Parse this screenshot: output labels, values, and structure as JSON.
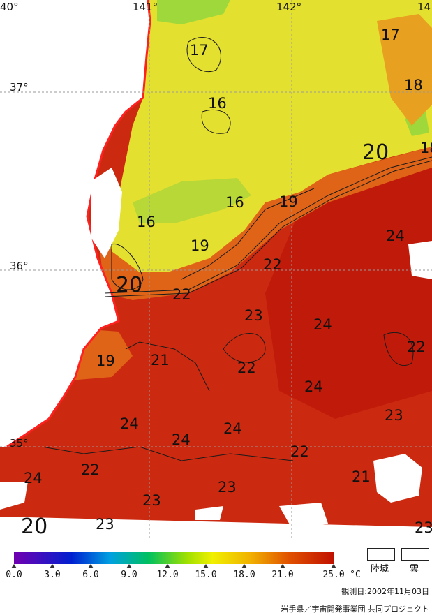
{
  "map": {
    "title": "",
    "longitude_labels": [
      "40°",
      "141°",
      "142°",
      "14"
    ],
    "latitude_labels": [
      "37°",
      "36°",
      "35°"
    ],
    "isotherm_labels": [
      "17",
      "17",
      "18",
      "16",
      "20",
      "18",
      "19",
      "16",
      "16",
      "24",
      "19",
      "22",
      "20",
      "22",
      "23",
      "24",
      "22",
      "19",
      "21",
      "22",
      "24",
      "23",
      "24",
      "24",
      "24",
      "22",
      "22",
      "24",
      "23",
      "23",
      "21",
      "20",
      "23",
      "23"
    ],
    "colors": {
      "land": "#ffffff",
      "coastline": "#ff2020",
      "sea_cool": "#e8e030",
      "sea_warm": "#d03010",
      "sea_hot": "#c01c0c",
      "grid": "#9a9a9a"
    }
  },
  "colorbar": {
    "unit": "°C",
    "tick_labels": [
      "0.0",
      "3.0",
      "6.0",
      "9.0",
      "12.0",
      "15.0",
      "18.0",
      "21.0",
      "25.0"
    ],
    "min": 0.0,
    "max": 25.0
  },
  "legend": {
    "land_label": "陸域",
    "cloud_label": "雲"
  },
  "observation_date": "観測日:2002年11月03日",
  "credit": "岩手県／宇宙開発事業団 共同プロジェクト"
}
